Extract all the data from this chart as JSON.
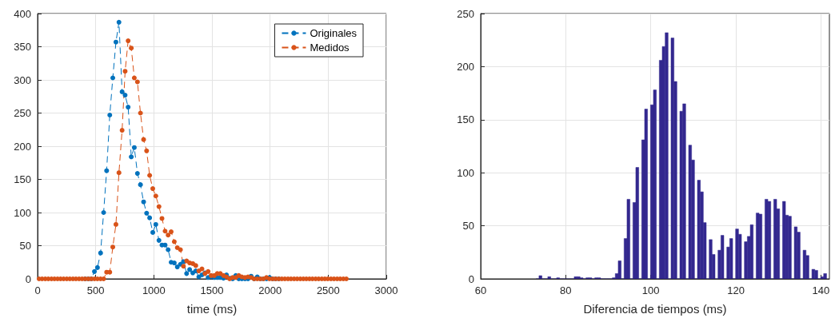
{
  "chart_data": [
    {
      "type": "line",
      "xlabel": "time (ms)",
      "xlim": [
        0,
        3000
      ],
      "xticks": [
        0,
        500,
        1000,
        1500,
        2000,
        2500,
        3000
      ],
      "ylim": [
        0,
        400
      ],
      "yticks": [
        0,
        50,
        100,
        150,
        200,
        250,
        300,
        350,
        400
      ],
      "grid": true,
      "legend": "top right",
      "marker": "circle",
      "line_style": "dashed",
      "x": [
        13,
        39,
        66,
        92,
        119,
        145,
        172,
        198,
        224,
        251,
        277,
        304,
        330,
        357,
        383,
        409,
        436,
        462,
        489,
        515,
        542,
        568,
        594,
        621,
        647,
        674,
        700,
        727,
        753,
        779,
        806,
        832,
        859,
        885,
        912,
        938,
        964,
        991,
        1017,
        1044,
        1070,
        1097,
        1123,
        1149,
        1176,
        1202,
        1229,
        1255,
        1282,
        1308,
        1335,
        1361,
        1387,
        1414,
        1440,
        1467,
        1493,
        1520,
        1546,
        1572,
        1599,
        1625,
        1652,
        1678,
        1705,
        1731,
        1757,
        1784,
        1810,
        1837,
        1863,
        1890,
        1916,
        1942,
        1969,
        1995,
        2022,
        2048,
        2075,
        2101,
        2127,
        2154,
        2180,
        2207,
        2233,
        2260,
        2286,
        2312,
        2339,
        2365,
        2392,
        2418,
        2445,
        2471,
        2497,
        2524,
        2550,
        2577,
        2603,
        2630,
        2656
      ],
      "series": [
        {
          "name": "Originales",
          "color": "#0072bd",
          "values": [
            null,
            null,
            null,
            null,
            null,
            null,
            null,
            null,
            null,
            null,
            null,
            null,
            null,
            null,
            null,
            0,
            0,
            0,
            11,
            17,
            39,
            100,
            163,
            247,
            303,
            357,
            387,
            282,
            277,
            259,
            184,
            198,
            159,
            142,
            116,
            99,
            92,
            70,
            82,
            58,
            51,
            51,
            44,
            25,
            24,
            18,
            22,
            26,
            8,
            14,
            9,
            12,
            3,
            6,
            9,
            2,
            3,
            2,
            2,
            2,
            1,
            6,
            1,
            0,
            5,
            0,
            0,
            0,
            0,
            4,
            0,
            3,
            0,
            0,
            0,
            2,
            0,
            0,
            0,
            null,
            null,
            null,
            null,
            null,
            null,
            null,
            null,
            null,
            null,
            null,
            null,
            null,
            null,
            null,
            null,
            null,
            null,
            null,
            null,
            null,
            null
          ]
        },
        {
          "name": "Medidos",
          "color": "#d95319",
          "values": [
            0,
            0,
            0,
            0,
            0,
            0,
            0,
            0,
            0,
            0,
            0,
            0,
            0,
            0,
            0,
            0,
            0,
            0,
            0,
            0,
            0,
            0,
            10,
            10,
            48,
            82,
            160,
            224,
            313,
            359,
            348,
            303,
            297,
            250,
            210,
            193,
            156,
            136,
            125,
            109,
            91,
            72,
            66,
            71,
            56,
            47,
            44,
            19,
            27,
            24,
            23,
            20,
            12,
            15,
            8,
            11,
            5,
            5,
            8,
            8,
            5,
            3,
            0,
            2,
            2,
            5,
            3,
            2,
            3,
            2,
            0,
            0,
            0,
            0,
            2,
            0,
            0,
            0,
            0,
            0,
            0,
            0,
            0,
            0,
            0,
            0,
            0,
            0,
            0,
            0,
            0,
            0,
            0,
            0,
            0,
            0,
            0,
            0,
            0,
            0,
            0
          ]
        }
      ]
    },
    {
      "type": "histogram",
      "xlabel": "Diferencia de tiempos (ms)",
      "xlim": [
        60,
        142
      ],
      "xticks": [
        60,
        80,
        100,
        120,
        140
      ],
      "ylim": [
        0,
        250
      ],
      "yticks": [
        0,
        50,
        100,
        150,
        200,
        250
      ],
      "grid": true,
      "color": "#33288f",
      "bins": [
        73.02,
        73.71,
        74.4,
        75.09,
        75.78,
        76.47,
        77.16,
        77.85,
        78.54,
        79.23,
        79.92,
        80.61,
        81.3,
        81.99,
        82.68,
        83.37,
        84.06,
        84.75,
        85.44,
        86.13,
        86.82,
        87.51,
        88.2,
        88.89,
        89.58,
        90.27,
        90.96,
        91.65,
        92.34,
        93.03,
        93.72,
        94.41,
        95.1,
        95.79,
        96.48,
        97.17,
        97.86,
        98.55,
        99.24,
        99.93,
        100.62,
        101.31,
        102.0,
        102.69,
        103.38,
        104.07,
        104.76,
        105.45,
        106.14,
        106.83,
        107.52,
        108.21,
        108.9,
        109.59,
        110.28,
        110.97,
        111.66,
        112.35,
        113.04,
        113.73,
        114.42,
        115.11,
        115.8,
        116.49,
        117.18,
        117.87,
        118.56,
        119.25,
        119.94,
        120.63,
        121.32,
        122.01,
        122.7,
        123.39,
        124.08,
        124.77,
        125.46,
        126.15,
        126.84,
        127.53,
        128.22,
        128.91,
        129.6,
        130.29,
        130.98,
        131.67,
        132.36,
        133.05,
        133.74,
        134.43,
        135.12,
        135.81,
        136.5,
        137.19,
        137.88,
        138.57,
        139.26,
        139.95,
        140.64,
        141.33
      ],
      "values": [
        0,
        3,
        0,
        0,
        2,
        0,
        0,
        1,
        0,
        0,
        0,
        0,
        0,
        2,
        2,
        1,
        0,
        1,
        1,
        0,
        1,
        1,
        0,
        0,
        0,
        0,
        1,
        5,
        17,
        0,
        38,
        75,
        0,
        72,
        105,
        0,
        131,
        160,
        0,
        164,
        178,
        0,
        206,
        219,
        232,
        0,
        227,
        186,
        0,
        158,
        165,
        0,
        126,
        112,
        0,
        93,
        82,
        53,
        0,
        37,
        23,
        0,
        27,
        41,
        0,
        30,
        38,
        0,
        47,
        42,
        0,
        35,
        40,
        51,
        0,
        62,
        61,
        0,
        75,
        73,
        0,
        75,
        66,
        0,
        73,
        60,
        59,
        0,
        49,
        44,
        0,
        27,
        22,
        0,
        9,
        8,
        0,
        2,
        5
      ]
    }
  ]
}
